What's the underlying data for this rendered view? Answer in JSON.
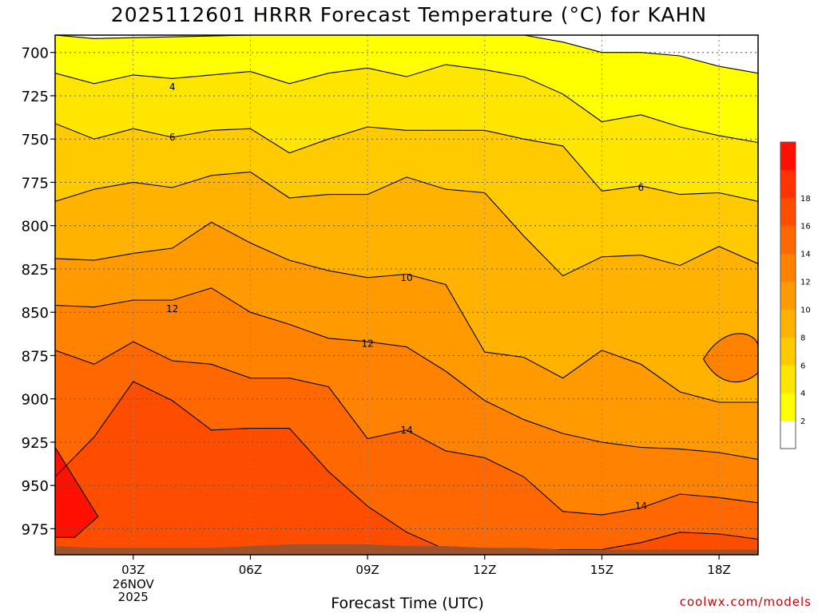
{
  "chart_data": {
    "type": "heatmap",
    "subtype": "time-height filled contour",
    "title": "2025112601 HRRR Forecast Temperature (°C) for KAHN",
    "xlabel": "Forecast Time (UTC)",
    "ylabel": "",
    "x_ticks": [
      "03Z",
      "06Z",
      "09Z",
      "12Z",
      "15Z",
      "18Z"
    ],
    "x_tick_values": [
      3,
      6,
      9,
      12,
      15,
      18
    ],
    "x_date_label": [
      "26NOV",
      "2025"
    ],
    "xlim": [
      1,
      19
    ],
    "y_ticks": [
      700,
      725,
      750,
      775,
      800,
      825,
      850,
      875,
      900,
      925,
      950,
      975
    ],
    "ylim": [
      990,
      690
    ],
    "y_inverted": true,
    "grid": true,
    "colorbar": {
      "levels": [
        0,
        2,
        4,
        6,
        8,
        10,
        12,
        14,
        16,
        18,
        20
      ],
      "tick_labels": [
        "2",
        "4",
        "6",
        "8",
        "10",
        "12",
        "14",
        "16",
        "18"
      ],
      "colors": [
        "#ffffff",
        "#ffff00",
        "#ffe600",
        "#ffcb00",
        "#ffb200",
        "#ff9a00",
        "#ff8200",
        "#ff6800",
        "#ff4d00",
        "#ff3300",
        "#ff1000"
      ],
      "placement": "right"
    },
    "ground_color": "#a0522d",
    "contour_labels": [
      {
        "value": "4",
        "x": 4,
        "p": 720
      },
      {
        "value": "6",
        "x": 4,
        "p": 749
      },
      {
        "value": "6",
        "x": 16,
        "p": 778
      },
      {
        "value": "10",
        "x": 10,
        "p": 830
      },
      {
        "value": "12",
        "x": 4,
        "p": 848
      },
      {
        "value": "12",
        "x": 9,
        "p": 868
      },
      {
        "value": "14",
        "x": 10,
        "p": 918
      },
      {
        "value": "14",
        "x": 16,
        "p": 962
      }
    ],
    "isotherms": [
      {
        "value": 2,
        "points": [
          [
            1,
            690
          ],
          [
            2,
            692
          ],
          [
            6,
            690
          ],
          [
            13,
            690
          ],
          [
            14,
            694
          ],
          [
            15,
            700
          ],
          [
            16,
            700
          ],
          [
            17,
            702
          ],
          [
            18,
            708
          ],
          [
            19,
            712
          ]
        ]
      },
      {
        "value": 4,
        "points": [
          [
            1,
            712
          ],
          [
            2,
            718
          ],
          [
            3,
            713
          ],
          [
            4,
            715
          ],
          [
            5,
            713
          ],
          [
            6,
            711
          ],
          [
            7,
            718
          ],
          [
            8,
            712
          ],
          [
            9,
            709
          ],
          [
            10,
            714
          ],
          [
            11,
            707
          ],
          [
            12,
            710
          ],
          [
            13,
            714
          ],
          [
            14,
            724
          ],
          [
            15,
            740
          ],
          [
            16,
            736
          ],
          [
            17,
            743
          ],
          [
            18,
            748
          ],
          [
            19,
            752
          ]
        ]
      },
      {
        "value": 6,
        "points": [
          [
            1,
            741
          ],
          [
            2,
            750
          ],
          [
            3,
            744
          ],
          [
            4,
            749
          ],
          [
            5,
            745
          ],
          [
            6,
            744
          ],
          [
            7,
            758
          ],
          [
            8,
            750
          ],
          [
            9,
            743
          ],
          [
            10,
            745
          ],
          [
            11,
            745
          ],
          [
            12,
            745
          ],
          [
            13,
            750
          ],
          [
            14,
            754
          ],
          [
            15,
            780
          ],
          [
            16,
            777
          ],
          [
            17,
            782
          ],
          [
            18,
            781
          ],
          [
            19,
            786
          ]
        ]
      },
      {
        "value": 8,
        "points": [
          [
            1,
            786
          ],
          [
            2,
            779
          ],
          [
            3,
            775
          ],
          [
            4,
            778
          ],
          [
            5,
            771
          ],
          [
            6,
            769
          ],
          [
            7,
            784
          ],
          [
            8,
            782
          ],
          [
            9,
            782
          ],
          [
            10,
            772
          ],
          [
            11,
            779
          ],
          [
            12,
            781
          ],
          [
            13,
            806
          ],
          [
            14,
            829
          ],
          [
            15,
            818
          ],
          [
            16,
            817
          ],
          [
            17,
            823
          ],
          [
            18,
            812
          ],
          [
            19,
            822
          ]
        ]
      },
      {
        "value": 10,
        "points": [
          [
            1,
            819
          ],
          [
            2,
            820
          ],
          [
            3,
            816
          ],
          [
            4,
            813
          ],
          [
            5,
            798
          ],
          [
            6,
            810
          ],
          [
            7,
            820
          ],
          [
            8,
            826
          ],
          [
            9,
            830
          ],
          [
            10,
            828
          ],
          [
            11,
            834
          ],
          [
            12,
            873
          ],
          [
            13,
            876
          ],
          [
            14,
            888
          ],
          [
            15,
            872
          ],
          [
            16,
            880
          ],
          [
            17,
            896
          ],
          [
            18,
            902
          ],
          [
            19,
            902
          ]
        ]
      },
      {
        "value": 12,
        "points": [
          [
            1,
            846
          ],
          [
            2,
            847
          ],
          [
            3,
            843
          ],
          [
            4,
            843
          ],
          [
            5,
            836
          ],
          [
            6,
            850
          ],
          [
            7,
            857
          ],
          [
            8,
            865
          ],
          [
            9,
            867
          ],
          [
            10,
            870
          ],
          [
            11,
            884
          ],
          [
            12,
            901
          ],
          [
            13,
            912
          ],
          [
            14,
            920
          ],
          [
            15,
            925
          ],
          [
            16,
            928
          ],
          [
            17,
            929
          ],
          [
            18,
            931
          ],
          [
            19,
            935
          ]
        ]
      },
      {
        "value": 14,
        "points": [
          [
            1,
            872
          ],
          [
            2,
            880
          ],
          [
            3,
            867
          ],
          [
            4,
            878
          ],
          [
            5,
            880
          ],
          [
            6,
            888
          ],
          [
            7,
            888
          ],
          [
            8,
            893
          ],
          [
            9,
            923
          ],
          [
            10,
            918
          ],
          [
            11,
            930
          ],
          [
            12,
            934
          ],
          [
            13,
            945
          ],
          [
            14,
            965
          ],
          [
            15,
            967
          ],
          [
            16,
            963
          ],
          [
            17,
            955
          ],
          [
            18,
            957
          ],
          [
            19,
            960
          ]
        ]
      },
      {
        "value": 16,
        "points": [
          [
            1,
            945
          ],
          [
            2,
            922
          ],
          [
            3,
            890
          ],
          [
            4,
            901
          ],
          [
            5,
            918
          ],
          [
            6,
            917
          ],
          [
            7,
            917
          ],
          [
            8,
            942
          ],
          [
            9,
            962
          ],
          [
            10,
            977
          ],
          [
            11,
            987
          ],
          [
            12,
            987
          ],
          [
            13,
            987
          ],
          [
            14,
            987
          ],
          [
            15,
            987
          ],
          [
            16,
            983
          ],
          [
            17,
            977
          ],
          [
            18,
            978
          ],
          [
            19,
            981
          ]
        ]
      }
    ],
    "ground_pressure": [
      [
        1,
        985
      ],
      [
        2,
        986
      ],
      [
        3,
        986
      ],
      [
        4,
        986
      ],
      [
        5,
        986
      ],
      [
        6,
        985
      ],
      [
        7,
        984
      ],
      [
        8,
        984
      ],
      [
        9,
        984
      ],
      [
        10,
        985
      ],
      [
        11,
        985
      ],
      [
        12,
        986
      ],
      [
        13,
        986
      ],
      [
        14,
        987
      ],
      [
        15,
        987
      ],
      [
        16,
        987
      ],
      [
        17,
        987
      ],
      [
        18,
        987
      ],
      [
        19,
        987
      ]
    ]
  },
  "credit": "coolwx.com/models",
  "credit_color": "#cc0000"
}
